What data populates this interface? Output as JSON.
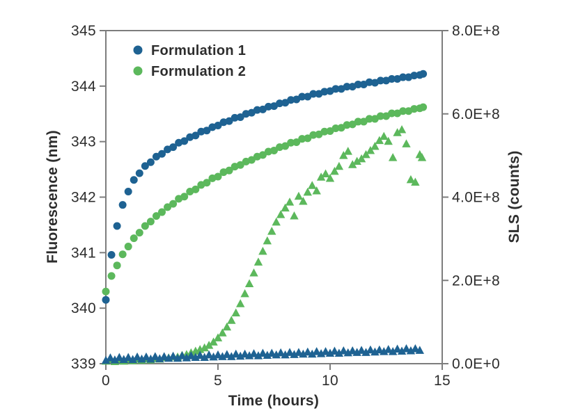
{
  "figure": {
    "background_color": "#ffffff",
    "axis_line_color": "#7d7d7d",
    "text_color": "#2d2d2d"
  },
  "chart_data": {
    "type": "scatter",
    "title": "",
    "xlabel": "Time (hours)",
    "ylabel_left": "Fluorescence (nm)",
    "ylabel_right": "SLS (counts)",
    "grid": false,
    "x_axis": {
      "min": 0,
      "max": 15,
      "ticks": [
        0,
        5,
        10,
        15
      ]
    },
    "y_axis_left": {
      "min": 339,
      "max": 345,
      "ticks": [
        339,
        340,
        341,
        342,
        343,
        344,
        345
      ]
    },
    "y_axis_right": {
      "min": 0,
      "max": 800000000,
      "ticks": [
        {
          "value": 0,
          "label": "0.0E+0"
        },
        {
          "value": 200000000,
          "label": "2.0E+8"
        },
        {
          "value": 400000000,
          "label": "4.0E+8"
        },
        {
          "value": 600000000,
          "label": "6.0E+8"
        },
        {
          "value": 800000000,
          "label": "8.0E+8"
        }
      ]
    },
    "legend": {
      "position": "top-left-inside",
      "entries": [
        {
          "label": "Formulation 1",
          "color": "#1e6292",
          "marker": "circle"
        },
        {
          "label": "Formulation 2",
          "color": "#5cb85c",
          "marker": "circle"
        }
      ]
    },
    "series": [
      {
        "name": "formulation-2-sls",
        "legend": "Formulation 2",
        "axis": "right",
        "marker": "triangle",
        "color": "#5cb85c",
        "points": [
          [
            0,
            6000000.0
          ],
          [
            0.2,
            10000000.0
          ],
          [
            0.4,
            5000000.0
          ],
          [
            0.6,
            9000000.0
          ],
          [
            0.8,
            6000000.0
          ],
          [
            1.0,
            10000000.0
          ],
          [
            1.2,
            7000000.0
          ],
          [
            1.4,
            11000000.0
          ],
          [
            1.6,
            8000000.0
          ],
          [
            1.8,
            12000000.0
          ],
          [
            2.0,
            9000000.0
          ],
          [
            2.2,
            13000000.0
          ],
          [
            2.4,
            11000000.0
          ],
          [
            2.6,
            15000000.0
          ],
          [
            2.8,
            14000000.0
          ],
          [
            3.0,
            17000000.0
          ],
          [
            3.2,
            16000000.0
          ],
          [
            3.4,
            20000000.0
          ],
          [
            3.6,
            22000000.0
          ],
          [
            3.8,
            26000000.0
          ],
          [
            4.0,
            30000000.0
          ],
          [
            4.2,
            34000000.0
          ],
          [
            4.4,
            38000000.0
          ],
          [
            4.6,
            44000000.0
          ],
          [
            4.8,
            52000000.0
          ],
          [
            5.0,
            62000000.0
          ],
          [
            5.2,
            74000000.0
          ],
          [
            5.4,
            88000000.0
          ],
          [
            5.6,
            104000000.0
          ],
          [
            5.8,
            122000000.0
          ],
          [
            6.0,
            144000000.0
          ],
          [
            6.2,
            168000000.0
          ],
          [
            6.4,
            192000000.0
          ],
          [
            6.6,
            218000000.0
          ],
          [
            6.8,
            244000000.0
          ],
          [
            7.0,
            270000000.0
          ],
          [
            7.2,
            295000000.0
          ],
          [
            7.4,
            318000000.0
          ],
          [
            7.6,
            340000000.0
          ],
          [
            7.8,
            358000000.0
          ],
          [
            8.0,
            374000000.0
          ],
          [
            8.2,
            388000000.0
          ],
          [
            8.4,
            355000000.0
          ],
          [
            8.6,
            402000000.0
          ],
          [
            8.8,
            390000000.0
          ],
          [
            9.0,
            412000000.0
          ],
          [
            9.2,
            428000000.0
          ],
          [
            9.4,
            415000000.0
          ],
          [
            9.6,
            448000000.0
          ],
          [
            9.8,
            456000000.0
          ],
          [
            10.0,
            445000000.0
          ],
          [
            10.2,
            462000000.0
          ],
          [
            10.4,
            474000000.0
          ],
          [
            10.6,
            500000000.0
          ],
          [
            10.8,
            510000000.0
          ],
          [
            11.0,
            478000000.0
          ],
          [
            11.2,
            486000000.0
          ],
          [
            11.4,
            492000000.0
          ],
          [
            11.6,
            502000000.0
          ],
          [
            11.8,
            512000000.0
          ],
          [
            12.0,
            522000000.0
          ],
          [
            12.2,
            536000000.0
          ],
          [
            12.4,
            546000000.0
          ],
          [
            12.6,
            534000000.0
          ],
          [
            12.8,
            495000000.0
          ],
          [
            13.0,
            555000000.0
          ],
          [
            13.2,
            562000000.0
          ],
          [
            13.4,
            528000000.0
          ],
          [
            13.6,
            442000000.0
          ],
          [
            13.8,
            436000000.0
          ],
          [
            14.0,
            502000000.0
          ],
          [
            14.1,
            495000000.0
          ]
        ]
      },
      {
        "name": "formulation-1-sls",
        "legend": "Formulation 1",
        "axis": "right",
        "marker": "triangle",
        "color": "#1e6292",
        "points": [
          [
            0,
            8000000.0
          ],
          [
            0.2,
            14000000.0
          ],
          [
            0.4,
            9000000.0
          ],
          [
            0.6,
            15000000.0
          ],
          [
            0.8,
            10000000.0
          ],
          [
            1.0,
            15000000.0
          ],
          [
            1.2,
            10000000.0
          ],
          [
            1.4,
            16000000.0
          ],
          [
            1.6,
            11000000.0
          ],
          [
            1.8,
            16000000.0
          ],
          [
            2.0,
            11000000.0
          ],
          [
            2.2,
            17000000.0
          ],
          [
            2.4,
            12000000.0
          ],
          [
            2.6,
            17000000.0
          ],
          [
            2.8,
            13000000.0
          ],
          [
            3.0,
            18000000.0
          ],
          [
            3.2,
            13000000.0
          ],
          [
            3.4,
            19000000.0
          ],
          [
            3.6,
            14000000.0
          ],
          [
            3.8,
            19000000.0
          ],
          [
            4.0,
            15000000.0
          ],
          [
            4.2,
            20000000.0
          ],
          [
            4.4,
            15000000.0
          ],
          [
            4.6,
            21000000.0
          ],
          [
            4.8,
            16000000.0
          ],
          [
            5.0,
            21000000.0
          ],
          [
            5.2,
            17000000.0
          ],
          [
            5.4,
            22000000.0
          ],
          [
            5.6,
            17000000.0
          ],
          [
            5.8,
            23000000.0
          ],
          [
            6.0,
            18000000.0
          ],
          [
            6.2,
            23000000.0
          ],
          [
            6.4,
            19000000.0
          ],
          [
            6.6,
            24000000.0
          ],
          [
            6.8,
            19000000.0
          ],
          [
            7.0,
            25000000.0
          ],
          [
            7.2,
            20000000.0
          ],
          [
            7.4,
            25000000.0
          ],
          [
            7.6,
            21000000.0
          ],
          [
            7.8,
            26000000.0
          ],
          [
            8.0,
            21000000.0
          ],
          [
            8.2,
            27000000.0
          ],
          [
            8.4,
            22000000.0
          ],
          [
            8.6,
            27000000.0
          ],
          [
            8.8,
            23000000.0
          ],
          [
            9.0,
            28000000.0
          ],
          [
            9.2,
            23000000.0
          ],
          [
            9.4,
            29000000.0
          ],
          [
            9.6,
            24000000.0
          ],
          [
            9.8,
            29000000.0
          ],
          [
            10.0,
            25000000.0
          ],
          [
            10.2,
            30000000.0
          ],
          [
            10.4,
            25000000.0
          ],
          [
            10.6,
            31000000.0
          ],
          [
            10.8,
            26000000.0
          ],
          [
            11.0,
            31000000.0
          ],
          [
            11.2,
            27000000.0
          ],
          [
            11.4,
            32000000.0
          ],
          [
            11.6,
            27000000.0
          ],
          [
            11.8,
            33000000.0
          ],
          [
            12.0,
            28000000.0
          ],
          [
            12.2,
            33000000.0
          ],
          [
            12.4,
            29000000.0
          ],
          [
            12.6,
            34000000.0
          ],
          [
            12.8,
            29000000.0
          ],
          [
            13.0,
            35000000.0
          ],
          [
            13.2,
            30000000.0
          ],
          [
            13.4,
            36000000.0
          ],
          [
            13.6,
            31000000.0
          ],
          [
            13.8,
            36000000.0
          ],
          [
            14.0,
            32000000.0
          ]
        ]
      },
      {
        "name": "formulation-2-fluorescence",
        "legend": "Formulation 2",
        "axis": "left",
        "marker": "circle",
        "color": "#5cb85c",
        "points": [
          [
            0,
            340.3
          ],
          [
            0.25,
            340.58
          ],
          [
            0.5,
            340.77
          ],
          [
            0.75,
            340.97
          ],
          [
            1,
            341.11
          ],
          [
            1.25,
            341.26
          ],
          [
            1.5,
            341.36
          ],
          [
            1.75,
            341.48
          ],
          [
            2,
            341.56
          ],
          [
            2.25,
            341.66
          ],
          [
            2.5,
            341.73
          ],
          [
            2.75,
            341.82
          ],
          [
            3,
            341.88
          ],
          [
            3.25,
            341.97
          ],
          [
            3.5,
            342.01
          ],
          [
            3.75,
            342.1
          ],
          [
            4,
            342.14
          ],
          [
            4.25,
            342.22
          ],
          [
            4.5,
            342.26
          ],
          [
            4.75,
            342.34
          ],
          [
            5,
            342.37
          ],
          [
            5.25,
            342.45
          ],
          [
            5.5,
            342.48
          ],
          [
            5.75,
            342.55
          ],
          [
            6,
            342.58
          ],
          [
            6.25,
            342.64
          ],
          [
            6.5,
            342.67
          ],
          [
            6.75,
            342.73
          ],
          [
            7,
            342.76
          ],
          [
            7.25,
            342.82
          ],
          [
            7.5,
            342.84
          ],
          [
            7.75,
            342.9
          ],
          [
            8,
            342.92
          ],
          [
            8.25,
            342.98
          ],
          [
            8.5,
            342.99
          ],
          [
            8.75,
            343.05
          ],
          [
            9,
            343.06
          ],
          [
            9.25,
            343.12
          ],
          [
            9.5,
            343.13
          ],
          [
            9.75,
            343.18
          ],
          [
            10,
            343.19
          ],
          [
            10.25,
            343.24
          ],
          [
            10.5,
            343.25
          ],
          [
            10.75,
            343.3
          ],
          [
            11,
            343.31
          ],
          [
            11.25,
            343.36
          ],
          [
            11.5,
            343.36
          ],
          [
            11.75,
            343.41
          ],
          [
            12,
            343.41
          ],
          [
            12.25,
            343.46
          ],
          [
            12.5,
            343.46
          ],
          [
            12.75,
            343.51
          ],
          [
            13,
            343.51
          ],
          [
            13.25,
            343.55
          ],
          [
            13.5,
            343.55
          ],
          [
            13.75,
            343.59
          ],
          [
            14,
            343.6
          ],
          [
            14.15,
            343.62
          ]
        ]
      },
      {
        "name": "formulation-1-fluorescence",
        "legend": "Formulation 1",
        "axis": "left",
        "marker": "circle",
        "color": "#1e6292",
        "points": [
          [
            0,
            340.15
          ],
          [
            0.25,
            340.96
          ],
          [
            0.5,
            341.48
          ],
          [
            0.75,
            341.86
          ],
          [
            1,
            342.1
          ],
          [
            1.25,
            342.31
          ],
          [
            1.5,
            342.43
          ],
          [
            1.75,
            342.56
          ],
          [
            2,
            342.63
          ],
          [
            2.25,
            342.73
          ],
          [
            2.5,
            342.78
          ],
          [
            2.75,
            342.86
          ],
          [
            3,
            342.9
          ],
          [
            3.25,
            342.98
          ],
          [
            3.5,
            343.01
          ],
          [
            3.75,
            343.08
          ],
          [
            4,
            343.11
          ],
          [
            4.25,
            343.18
          ],
          [
            4.5,
            343.2
          ],
          [
            4.75,
            343.26
          ],
          [
            5,
            343.29
          ],
          [
            5.25,
            343.35
          ],
          [
            5.5,
            343.37
          ],
          [
            5.75,
            343.43
          ],
          [
            6,
            343.44
          ],
          [
            6.25,
            343.5
          ],
          [
            6.5,
            343.52
          ],
          [
            6.75,
            343.57
          ],
          [
            7,
            343.58
          ],
          [
            7.25,
            343.63
          ],
          [
            7.5,
            343.64
          ],
          [
            7.75,
            343.69
          ],
          [
            8,
            343.7
          ],
          [
            8.25,
            343.75
          ],
          [
            8.5,
            343.76
          ],
          [
            8.75,
            343.81
          ],
          [
            9,
            343.81
          ],
          [
            9.25,
            343.86
          ],
          [
            9.5,
            343.86
          ],
          [
            9.75,
            343.9
          ],
          [
            10,
            343.91
          ],
          [
            10.25,
            343.95
          ],
          [
            10.5,
            343.95
          ],
          [
            10.75,
            343.99
          ],
          [
            11,
            343.99
          ],
          [
            11.25,
            344.03
          ],
          [
            11.5,
            344.03
          ],
          [
            11.75,
            344.07
          ],
          [
            12,
            344.06
          ],
          [
            12.25,
            344.1
          ],
          [
            12.5,
            344.1
          ],
          [
            12.75,
            344.13
          ],
          [
            13,
            344.13
          ],
          [
            13.25,
            344.16
          ],
          [
            13.5,
            344.16
          ],
          [
            13.75,
            344.19
          ],
          [
            14,
            344.2
          ],
          [
            14.15,
            344.22
          ]
        ]
      }
    ]
  }
}
